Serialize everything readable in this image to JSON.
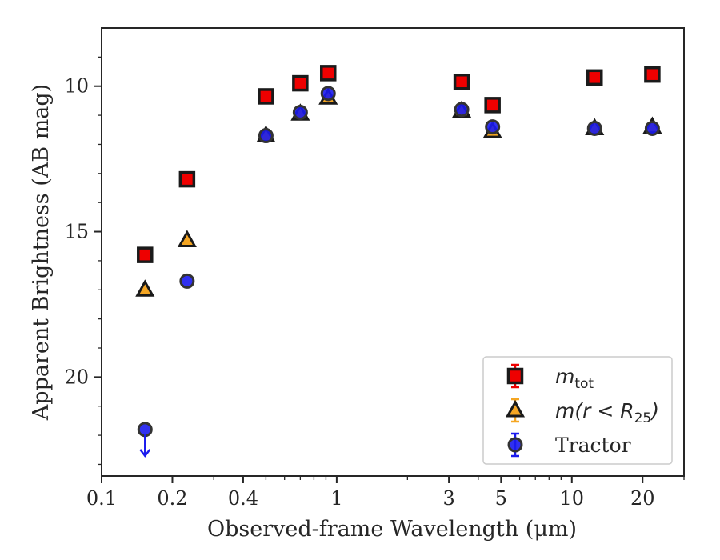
{
  "chart_data": {
    "type": "scatter",
    "title": "",
    "xlabel": "Observed-frame Wavelength (μm)",
    "ylabel": "Apparent Brightness (AB mag)",
    "x_scale": "log",
    "y_inverted": true,
    "xlim": [
      0.1,
      30
    ],
    "ylim": [
      23.4,
      8.0
    ],
    "x_ticks": [
      0.1,
      0.2,
      0.4,
      1,
      3,
      5,
      10,
      20
    ],
    "x_tick_labels": [
      "0.1",
      "0.2",
      "0.4",
      "1",
      "3",
      "5",
      "10",
      "20"
    ],
    "y_ticks": [
      10,
      15,
      20
    ],
    "y_tick_labels": [
      "10",
      "15",
      "20"
    ],
    "grid": false,
    "legend_position": "lower-right",
    "series": [
      {
        "name": "m_tot",
        "legend_label": "m",
        "legend_sub": "tot",
        "marker": "square",
        "color": "#ee0000",
        "edge_color": "#1a1a1a",
        "x": [
          0.153,
          0.231,
          0.5,
          0.7,
          0.92,
          3.4,
          4.6,
          12.5,
          22.0
        ],
        "y": [
          15.8,
          13.2,
          10.35,
          9.9,
          9.55,
          9.85,
          10.65,
          9.7,
          9.6
        ]
      },
      {
        "name": "m(r < R_25)",
        "legend_label": "m(r < R",
        "legend_sub": "25",
        "legend_suffix": ")",
        "marker": "triangle",
        "color": "#f5a623",
        "edge_color": "#1a1a1a",
        "x": [
          0.153,
          0.231,
          0.5,
          0.7,
          0.92,
          3.4,
          4.6,
          12.5,
          22.0
        ],
        "y": [
          17.0,
          15.3,
          11.7,
          10.95,
          10.4,
          10.85,
          11.55,
          11.45,
          11.4
        ]
      },
      {
        "name": "Tractor",
        "legend_label": "Tractor",
        "marker": "circle",
        "color": "#1a1aee",
        "edge_color": "#333333",
        "x": [
          0.153,
          0.231,
          0.5,
          0.7,
          0.92,
          3.4,
          4.6,
          12.5,
          22.0
        ],
        "y": [
          21.8,
          16.7,
          11.7,
          10.9,
          10.25,
          10.8,
          11.4,
          11.45,
          11.45
        ],
        "upper_limit_index": 0
      }
    ]
  }
}
